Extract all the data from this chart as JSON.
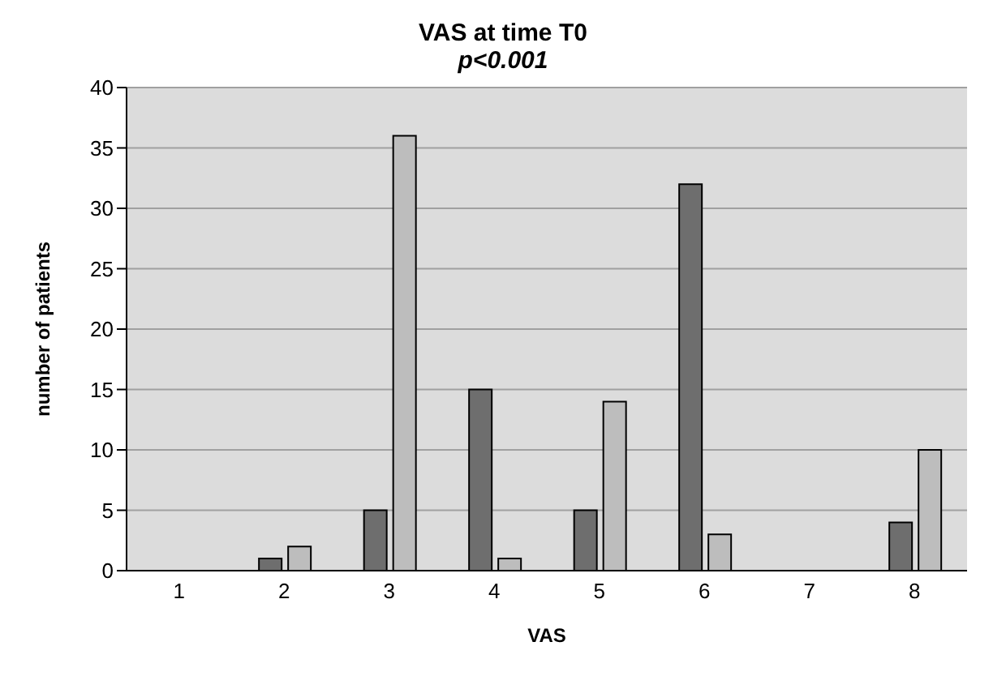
{
  "chart_data": {
    "type": "bar",
    "title": "VAS at time T0",
    "subtitle": "p<0.001",
    "xlabel": "VAS",
    "ylabel": "number of patients",
    "categories": [
      "1",
      "2",
      "3",
      "4",
      "5",
      "6",
      "7",
      "8"
    ],
    "series": [
      {
        "color": "#6e6e6e",
        "values": [
          0,
          1,
          5,
          15,
          5,
          32,
          0,
          4
        ]
      },
      {
        "color": "#bdbdbd",
        "values": [
          0,
          2,
          36,
          1,
          14,
          3,
          0,
          10
        ]
      }
    ],
    "ylim": [
      0,
      40
    ],
    "yticks": [
      0,
      5,
      10,
      15,
      20,
      25,
      30,
      35,
      40
    ],
    "grid": "y"
  }
}
